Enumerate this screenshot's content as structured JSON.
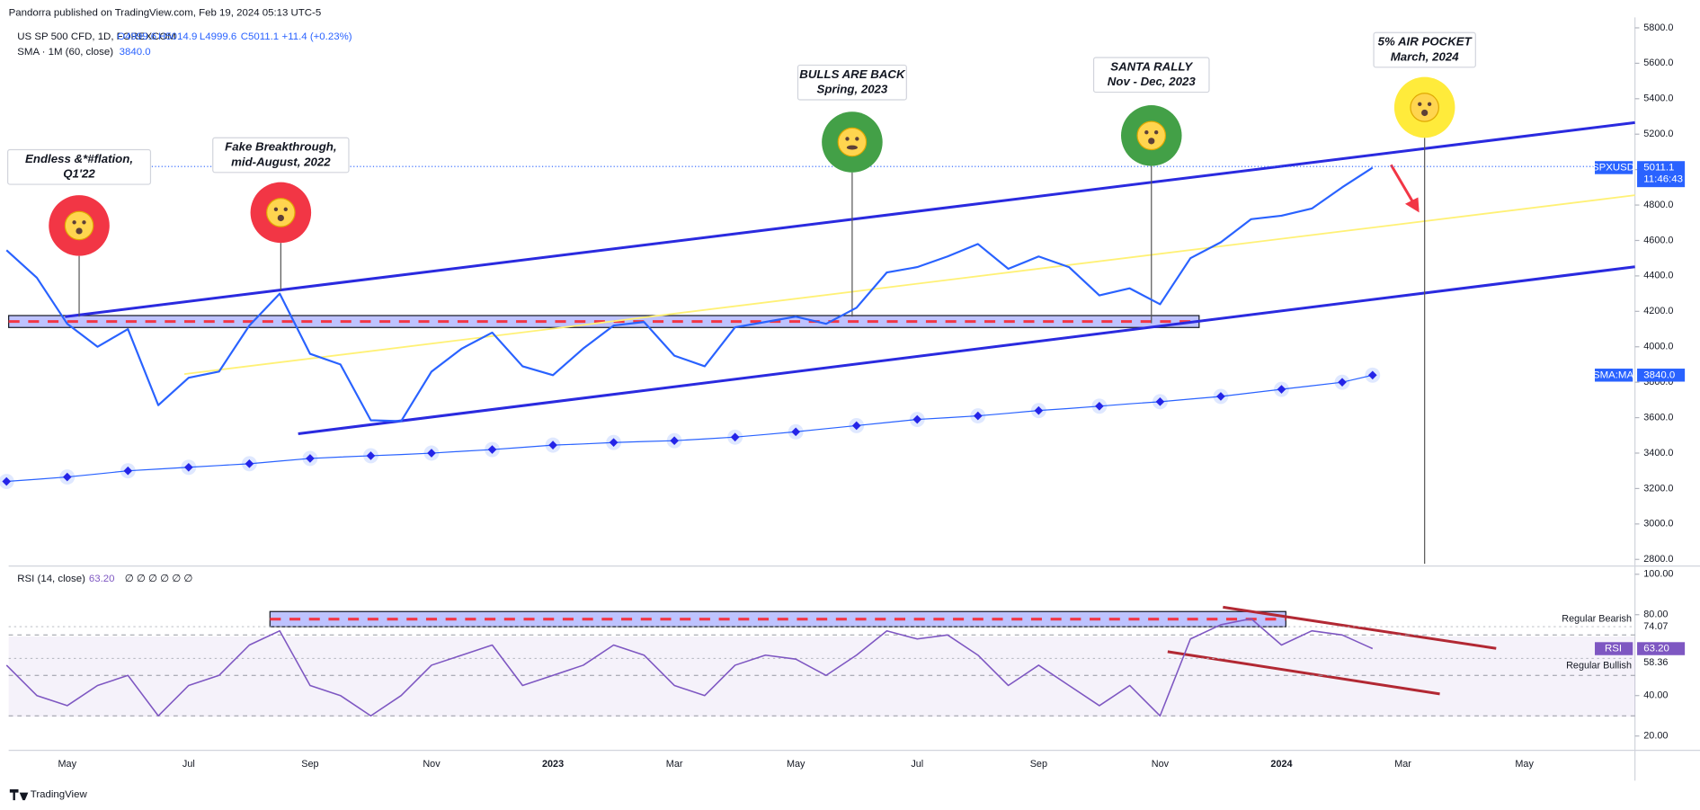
{
  "publisher": "Pandorra published on TradingView.com, Feb 19, 2024 05:13 UTC-5",
  "footer": "TradingView",
  "chart_data": [
    {
      "type": "line",
      "title": "US SP 500 CFD, 1D, FOREXCOM",
      "legend_values": [
        "O4999.6",
        "H5014.9",
        "L4999.6",
        "C5011.1",
        "+11.4 (+0.23%)"
      ],
      "categories": [
        null,
        null,
        "May",
        null,
        null,
        null,
        "Jul",
        null,
        null,
        null,
        "Sep",
        null,
        null,
        null,
        "Nov",
        null,
        null,
        null,
        "2023",
        null,
        null,
        null,
        "Mar",
        null,
        null,
        null,
        "May",
        null,
        null,
        null,
        "Jul",
        null,
        null,
        null,
        "Sep",
        null,
        null,
        null,
        "Nov",
        null,
        null,
        null,
        "2024",
        null,
        null,
        null,
        "Mar",
        null,
        null,
        null,
        "May",
        null,
        null,
        null
      ],
      "series": [
        {
          "name": "SPXUSD",
          "color": "#2962ff",
          "last_label": "5011.1",
          "timer": "11:46:43",
          "values": [
            4545,
            4390,
            4130,
            4000,
            4100,
            3670,
            3825,
            3860,
            4120,
            4300,
            3960,
            3900,
            3585,
            3580,
            3860,
            3990,
            4080,
            3890,
            3840,
            3990,
            4120,
            4140,
            3950,
            3890,
            4110,
            4140,
            4170,
            4130,
            4220,
            4420,
            4450,
            4510,
            4580,
            4440,
            4510,
            4450,
            4290,
            4330,
            4240,
            4500,
            4590,
            4720,
            4740,
            4780,
            4900,
            5011.1,
            null,
            null,
            null,
            null,
            null,
            null,
            null,
            null
          ]
        },
        {
          "name": "SMA · 1M (60, close)",
          "tag": "SMA:MA",
          "color": "#2962ff",
          "last_label": "3840.0",
          "values": [
            3240,
            3252,
            3265,
            3282,
            3300,
            3310,
            3320,
            3330,
            3340,
            3355,
            3370,
            3378,
            3385,
            3392,
            3400,
            3410,
            3420,
            3432,
            3445,
            3452,
            3460,
            3465,
            3470,
            3480,
            3490,
            3505,
            3520,
            3538,
            3555,
            3572,
            3590,
            3600,
            3610,
            3625,
            3640,
            3652,
            3665,
            3678,
            3690,
            3705,
            3720,
            3740,
            3760,
            3780,
            3800,
            3840,
            null,
            null,
            null,
            null,
            null,
            null,
            null,
            null
          ]
        }
      ],
      "ylim": [
        2775,
        5810
      ],
      "yticks": [
        {
          "value": 2800,
          "label": "2800.0"
        },
        {
          "value": 3000,
          "label": "3000.0"
        },
        {
          "value": 3200,
          "label": "3200.0"
        },
        {
          "value": 3400,
          "label": "3400.0"
        },
        {
          "value": 3600,
          "label": "3600.0"
        },
        {
          "value": 3800,
          "label": "3800.0"
        },
        {
          "value": 4000,
          "label": "4000.0"
        },
        {
          "value": 4200,
          "label": "4200.0"
        },
        {
          "value": 4400,
          "label": "4400.0"
        },
        {
          "value": 4600,
          "label": "4600.0"
        },
        {
          "value": 4800,
          "label": "4800.0"
        },
        {
          "value": 5000,
          "label": "5000.0"
        },
        {
          "value": 5200,
          "label": "5200.0"
        },
        {
          "value": 5400,
          "label": "5400.0"
        },
        {
          "value": 5600,
          "label": "5600.0"
        },
        {
          "value": 5800,
          "label": "5800.0"
        }
      ],
      "annotations": [
        [
          "Endless &*#flation,",
          "Q1'22"
        ],
        [
          "Fake Breakthrough,",
          "mid-August, 2022"
        ],
        [
          "BULLS ARE BACK",
          "Spring, 2023"
        ],
        [
          "SANTA RALLY",
          "Nov - Dec, 2023"
        ],
        [
          "5% AIR POCKET",
          "March, 2024"
        ]
      ]
    },
    {
      "type": "line",
      "title": "RSI (14, close)",
      "value_label": "63.20",
      "inputs": "∅ ∅ ∅ ∅ ∅ ∅",
      "tag": "RSI",
      "series": [
        {
          "name": "RSI",
          "color": "#7e57c2",
          "values": [
            55,
            40,
            35,
            45,
            50,
            30,
            45,
            50,
            65,
            72,
            45,
            40,
            30,
            40,
            55,
            60,
            65,
            45,
            50,
            55,
            65,
            60,
            45,
            40,
            55,
            60,
            58,
            50,
            60,
            72,
            68,
            70,
            60,
            45,
            55,
            45,
            35,
            45,
            30,
            68,
            75,
            78,
            65,
            72,
            70,
            63.2,
            null,
            null,
            null,
            null,
            null,
            null,
            null,
            null
          ]
        }
      ],
      "ylim": [
        14,
        103
      ],
      "yticks": [
        {
          "value": 20,
          "label": "20.00"
        },
        {
          "value": 40,
          "label": "40.00"
        },
        {
          "value": 80,
          "label": "80.00"
        },
        {
          "value": 100,
          "label": "100.00"
        }
      ],
      "bands": [
        70,
        50,
        30
      ],
      "levels": [
        {
          "name": "Regular Bearish",
          "value": 74.07,
          "label": "74.07"
        },
        {
          "name": "Regular Bullish",
          "value": 58.36,
          "label": "58.36"
        }
      ]
    }
  ]
}
